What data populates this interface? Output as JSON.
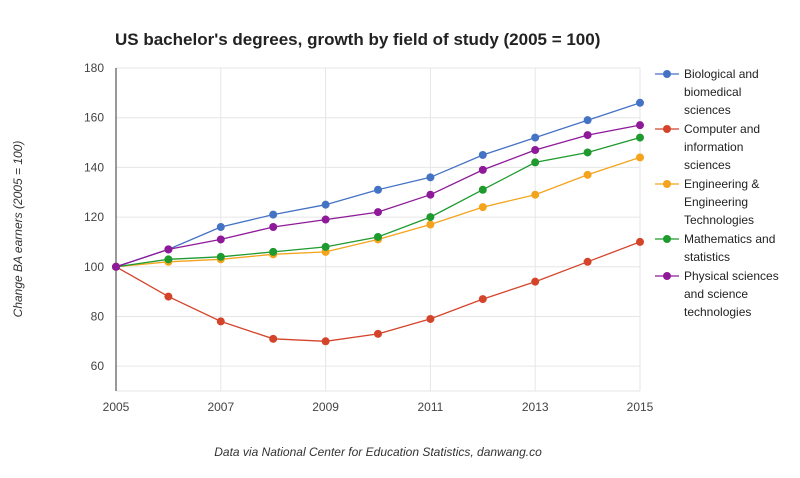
{
  "chart_data": {
    "type": "line",
    "title": "US bachelor's degrees, growth by field of study (2005 = 100)",
    "xlabel": "",
    "ylabel": "Change BA earners (2005 = 100)",
    "caption": "Data via National Center for Education Statistics, danwang.co",
    "x": [
      2005,
      2006,
      2007,
      2008,
      2009,
      2010,
      2011,
      2012,
      2013,
      2014,
      2015
    ],
    "xticks": [
      "2005",
      "2007",
      "2009",
      "2011",
      "2013",
      "2015"
    ],
    "ylim": [
      50,
      180
    ],
    "yticks": [
      "60",
      "80",
      "100",
      "120",
      "140",
      "160",
      "180"
    ],
    "grid": true,
    "legend_position": "right",
    "series": [
      {
        "name": "Biological and biomedical sciences",
        "legend_lines": [
          "Biological and",
          "biomedical",
          "sciences"
        ],
        "color": "#4472C4",
        "values": [
          100,
          107,
          116,
          121,
          125,
          131,
          136,
          145,
          152,
          159,
          166
        ]
      },
      {
        "name": "Computer and information sciences",
        "legend_lines": [
          "Computer and",
          "information",
          "sciences"
        ],
        "color": "#D4442B",
        "values": [
          100,
          88,
          78,
          71,
          70,
          73,
          79,
          87,
          94,
          102,
          110
        ]
      },
      {
        "name": "Engineering & Engineering Technologies",
        "legend_lines": [
          "Engineering &",
          "Engineering",
          "Technologies"
        ],
        "color": "#F4A41C",
        "values": [
          100,
          102,
          103,
          105,
          106,
          111,
          117,
          124,
          129,
          137,
          144
        ]
      },
      {
        "name": "Mathematics and statistics",
        "legend_lines": [
          "Mathematics and",
          "statistics"
        ],
        "color": "#1E9A2E",
        "values": [
          100,
          103,
          104,
          106,
          108,
          112,
          120,
          131,
          142,
          146,
          152
        ]
      },
      {
        "name": "Physical sciences and science technologies",
        "legend_lines": [
          "Physical sciences",
          "and science",
          "technologies"
        ],
        "color": "#8E1A99",
        "values": [
          100,
          107,
          111,
          116,
          119,
          122,
          129,
          139,
          147,
          153,
          157
        ]
      }
    ]
  }
}
